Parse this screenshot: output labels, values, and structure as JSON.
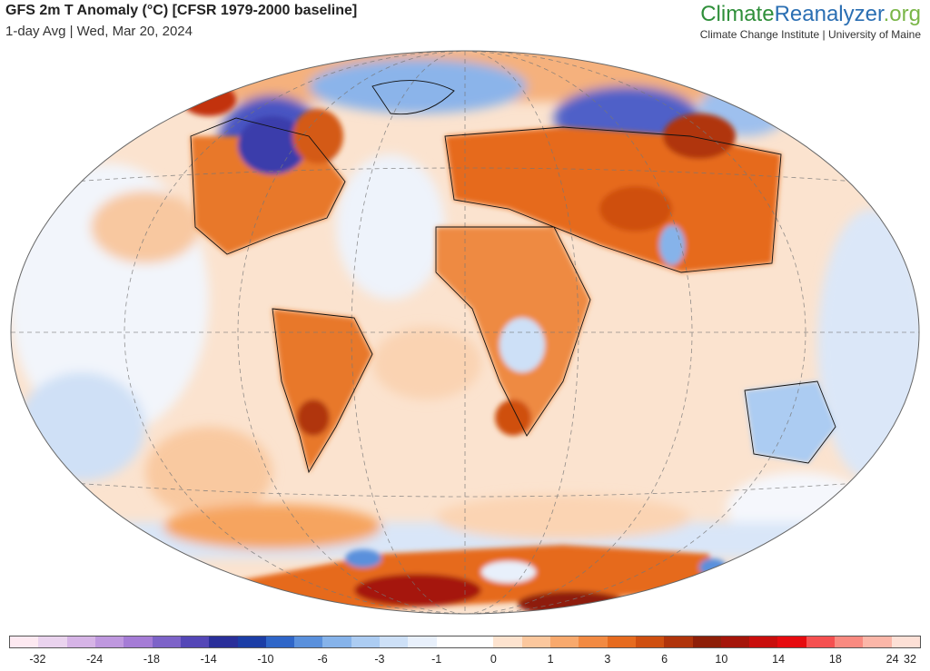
{
  "header": {
    "title": "GFS 2m T Anomaly (°C) [CFSR 1979-2000 baseline]",
    "subtitle": "1-day Avg | Wed, Mar 20, 2024"
  },
  "brand": {
    "logo_part1": "Climate",
    "logo_part2": "Reanalyzer",
    "logo_part3": ".org",
    "tagline": "Climate Change Institute | University of Maine",
    "colors": {
      "climate": "#2f8f3a",
      "reanalyzer": "#2b6fb3",
      "org": "#7ab648"
    }
  },
  "legend": {
    "colors": [
      "#fde9f1",
      "#ead3ee",
      "#d6b4e6",
      "#bf98df",
      "#a57cd6",
      "#7d63c8",
      "#5447b7",
      "#2a2f9a",
      "#1c3ea6",
      "#2f66c8",
      "#5a90dc",
      "#86b3ea",
      "#acccf2",
      "#cde0f7",
      "#e8f0fb",
      "#ffffff",
      "#ffffff",
      "#fde3cf",
      "#fbc79d",
      "#f8a96d",
      "#f28a42",
      "#e66b1f",
      "#cf4f10",
      "#b0340b",
      "#8e1f08",
      "#a5150a",
      "#c90e0c",
      "#e60b0f",
      "#f55050",
      "#f98a80",
      "#fbb6a8",
      "#fde0d6"
    ],
    "tick_labels": [
      "-32",
      "-24",
      "-18",
      "-14",
      "-10",
      "-6",
      "-3",
      "-1",
      "0",
      "1",
      "3",
      "6",
      "10",
      "14",
      "18",
      "24",
      "32"
    ]
  }
}
